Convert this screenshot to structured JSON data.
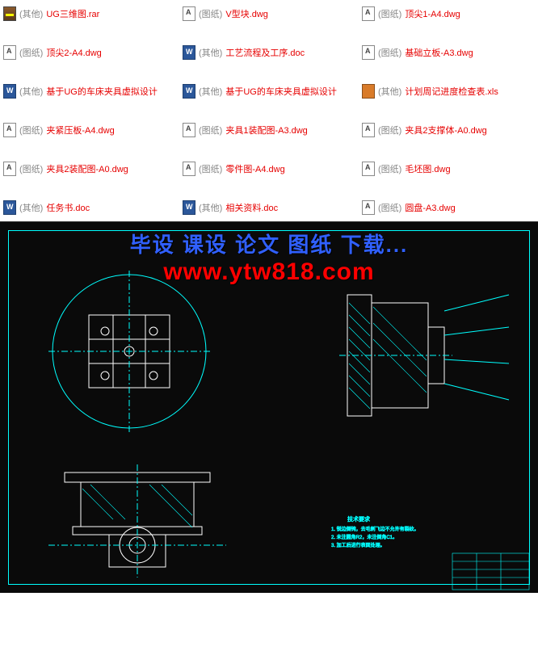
{
  "files": [
    {
      "icon": "rar",
      "tag": "(其他)",
      "name": "UG三维图.rar"
    },
    {
      "icon": "dwg",
      "tag": "(图纸)",
      "name": "V型块.dwg"
    },
    {
      "icon": "dwg",
      "tag": "(图纸)",
      "name": "顶尖1-A4.dwg"
    },
    {
      "icon": "dwg",
      "tag": "(图纸)",
      "name": "顶尖2-A4.dwg"
    },
    {
      "icon": "doc",
      "tag": "(其他)",
      "name": "工艺流程及工序.doc"
    },
    {
      "icon": "dwg",
      "tag": "(图纸)",
      "name": "基础立板-A3.dwg"
    },
    {
      "icon": "doc",
      "tag": "(其他)",
      "name": "基于UG的车床夹具虚拟设计"
    },
    {
      "icon": "doc",
      "tag": "(其他)",
      "name": "基于UG的车床夹具虚拟设计"
    },
    {
      "icon": "xls",
      "tag": "(其他)",
      "name": "计划周记进度检查表.xls"
    },
    {
      "icon": "dwg",
      "tag": "(图纸)",
      "name": "夹紧压板-A4.dwg"
    },
    {
      "icon": "dwg",
      "tag": "(图纸)",
      "name": "夹具1装配图-A3.dwg"
    },
    {
      "icon": "dwg",
      "tag": "(图纸)",
      "name": "夹具2支撑体-A0.dwg"
    },
    {
      "icon": "dwg",
      "tag": "(图纸)",
      "name": "夹具2装配图-A0.dwg"
    },
    {
      "icon": "dwg",
      "tag": "(图纸)",
      "name": "零件图-A4.dwg"
    },
    {
      "icon": "dwg",
      "tag": "(图纸)",
      "name": "毛坯图.dwg"
    },
    {
      "icon": "doc",
      "tag": "(其他)",
      "name": "任务书.doc"
    },
    {
      "icon": "doc",
      "tag": "(其他)",
      "name": "相关资料.doc"
    },
    {
      "icon": "dwg",
      "tag": "(图纸)",
      "name": "圆盘-A3.dwg"
    }
  ],
  "watermark": {
    "line1": "毕设 课设 论文 图纸 下载...",
    "line2": "www.ytw818.com"
  },
  "cad": {
    "stroke": "#00ffff",
    "white": "#ffffff",
    "bg": "#0a0a0a"
  }
}
